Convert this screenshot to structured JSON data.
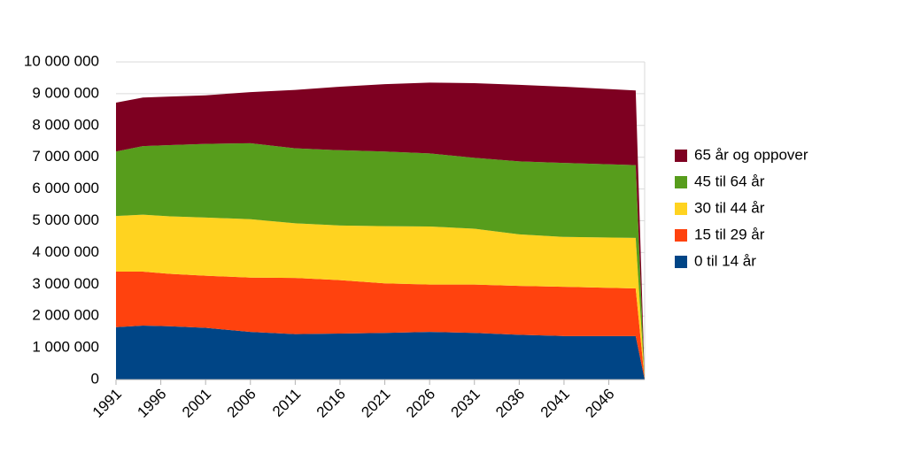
{
  "chart_data": {
    "type": "stacked_area",
    "x": [
      1991,
      1994,
      1997,
      2001,
      2006,
      2011,
      2016,
      2021,
      2026,
      2031,
      2036,
      2041,
      2049,
      2050
    ],
    "xlim": [
      1991,
      2050
    ],
    "xticks": [
      1991,
      1996,
      2001,
      2006,
      2011,
      2016,
      2021,
      2026,
      2031,
      2036,
      2041,
      2046
    ],
    "ylim": [
      0,
      10000000
    ],
    "yticks": [
      {
        "value": 0,
        "label": "0"
      },
      {
        "value": 1000000,
        "label": "1 000 000"
      },
      {
        "value": 2000000,
        "label": "2 000 000"
      },
      {
        "value": 3000000,
        "label": "3 000 000"
      },
      {
        "value": 4000000,
        "label": "4 000 000"
      },
      {
        "value": 5000000,
        "label": "5 000 000"
      },
      {
        "value": 6000000,
        "label": "6 000 000"
      },
      {
        "value": 7000000,
        "label": "7 000 000"
      },
      {
        "value": 8000000,
        "label": "8 000 000"
      },
      {
        "value": 9000000,
        "label": "9 000 000"
      },
      {
        "value": 10000000,
        "label": "10 000 000"
      }
    ],
    "grid": true,
    "legend": "right",
    "series": [
      {
        "name": "0 til 14 år",
        "color": "#004586",
        "values": [
          1650000,
          1700000,
          1680000,
          1630000,
          1500000,
          1430000,
          1450000,
          1470000,
          1500000,
          1470000,
          1410000,
          1370000,
          1370000,
          0
        ]
      },
      {
        "name": "15 til 29 år",
        "color": "#ff420e",
        "values": [
          1750000,
          1700000,
          1650000,
          1640000,
          1710000,
          1770000,
          1680000,
          1560000,
          1490000,
          1520000,
          1540000,
          1550000,
          1500000,
          0
        ]
      },
      {
        "name": "30 til 44 år",
        "color": "#ffd320",
        "values": [
          1750000,
          1790000,
          1810000,
          1830000,
          1840000,
          1720000,
          1720000,
          1800000,
          1830000,
          1760000,
          1620000,
          1570000,
          1590000,
          0
        ]
      },
      {
        "name": "45 til 64 år",
        "color": "#579d1c",
        "values": [
          2030000,
          2160000,
          2240000,
          2320000,
          2390000,
          2360000,
          2370000,
          2350000,
          2300000,
          2230000,
          2300000,
          2330000,
          2290000,
          0
        ]
      },
      {
        "name": "65 år og oppover",
        "color": "#7e0021",
        "values": [
          1540000,
          1530000,
          1530000,
          1530000,
          1610000,
          1840000,
          2000000,
          2120000,
          2230000,
          2350000,
          2410000,
          2400000,
          2350000,
          0
        ]
      }
    ]
  }
}
